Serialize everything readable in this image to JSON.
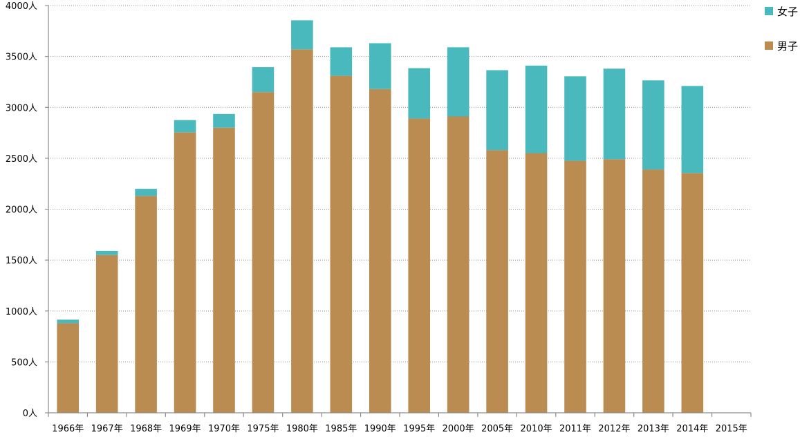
{
  "chart_data": {
    "type": "bar",
    "stacked": true,
    "categories": [
      "1966年",
      "1967年",
      "1968年",
      "1969年",
      "1970年",
      "1975年",
      "1980年",
      "1985年",
      "1990年",
      "1995年",
      "2000年",
      "2005年",
      "2010年",
      "2011年",
      "2012年",
      "2013年",
      "2014年",
      "2015年"
    ],
    "series": [
      {
        "name": "男子",
        "color": "#bb8c52",
        "values": [
          880,
          1550,
          2130,
          2755,
          2800,
          3150,
          3570,
          3310,
          3180,
          2890,
          2910,
          2580,
          2550,
          2475,
          2490,
          2390,
          2355,
          null
        ]
      },
      {
        "name": "女子",
        "color": "#4ab9bd",
        "values": [
          35,
          40,
          70,
          120,
          135,
          245,
          285,
          280,
          450,
          495,
          680,
          785,
          860,
          830,
          890,
          875,
          855,
          null
        ]
      }
    ],
    "yticks": [
      "0人",
      "500人",
      "1000人",
      "1500人",
      "2000人",
      "2500人",
      "3000人",
      "3500人",
      "4000人"
    ],
    "ylim": [
      0,
      4000
    ],
    "grid": true,
    "legend_position": "top-right"
  }
}
